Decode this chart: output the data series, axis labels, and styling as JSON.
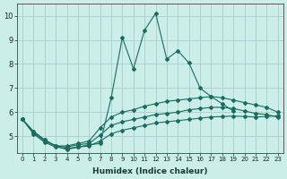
{
  "xlabel": "Humidex (Indice chaleur)",
  "xlim": [
    -0.5,
    23.5
  ],
  "ylim": [
    4.3,
    10.5
  ],
  "background_color": "#cceee8",
  "grid_color": "#aacccc",
  "line_color": "#1a6b60",
  "line1_x": [
    0,
    1,
    2,
    3,
    4,
    5,
    6,
    7,
    8,
    9,
    10,
    11,
    12,
    13,
    14,
    15,
    16,
    17,
    18,
    19,
    20,
    21,
    22,
    23
  ],
  "line1_y": [
    5.7,
    5.2,
    4.85,
    4.6,
    4.45,
    4.55,
    4.65,
    4.7,
    6.6,
    9.1,
    7.8,
    9.4,
    10.1,
    8.2,
    8.55,
    8.05,
    7.0,
    6.65,
    6.35,
    6.05,
    null,
    null,
    null,
    null
  ],
  "line2_x": [
    0,
    1,
    2,
    3,
    4,
    5,
    6,
    7,
    8,
    9,
    10,
    11,
    12,
    13,
    14,
    15,
    16,
    17,
    18,
    19,
    20,
    21,
    22,
    23
  ],
  "line2_y": [
    5.7,
    5.2,
    4.85,
    4.6,
    4.6,
    4.7,
    4.8,
    5.35,
    5.8,
    6.0,
    6.1,
    6.25,
    6.35,
    6.45,
    6.5,
    6.55,
    6.6,
    6.65,
    6.6,
    6.5,
    6.4,
    6.3,
    6.2,
    6.0
  ],
  "line3_x": [
    0,
    1,
    2,
    3,
    4,
    5,
    6,
    7,
    8,
    9,
    10,
    11,
    12,
    13,
    14,
    15,
    16,
    17,
    18,
    19,
    20,
    21,
    22,
    23
  ],
  "line3_y": [
    5.7,
    5.15,
    4.8,
    4.6,
    4.55,
    4.65,
    4.7,
    5.05,
    5.45,
    5.6,
    5.7,
    5.8,
    5.9,
    5.95,
    6.0,
    6.1,
    6.15,
    6.2,
    6.2,
    6.15,
    6.05,
    5.95,
    5.9,
    5.8
  ],
  "line4_x": [
    0,
    1,
    2,
    3,
    4,
    5,
    6,
    7,
    8,
    9,
    10,
    11,
    12,
    13,
    14,
    15,
    16,
    17,
    18,
    19,
    20,
    21,
    22,
    23
  ],
  "line4_y": [
    5.7,
    5.1,
    4.75,
    4.55,
    4.5,
    4.55,
    4.6,
    4.8,
    5.1,
    5.25,
    5.35,
    5.45,
    5.55,
    5.6,
    5.65,
    5.7,
    5.75,
    5.8,
    5.82,
    5.84,
    5.82,
    5.8,
    5.82,
    5.85
  ],
  "xticks": [
    0,
    1,
    2,
    3,
    4,
    5,
    6,
    7,
    8,
    9,
    10,
    11,
    12,
    13,
    14,
    15,
    16,
    17,
    18,
    19,
    20,
    21,
    22,
    23
  ],
  "yticks": [
    5,
    6,
    7,
    8,
    9,
    10
  ]
}
